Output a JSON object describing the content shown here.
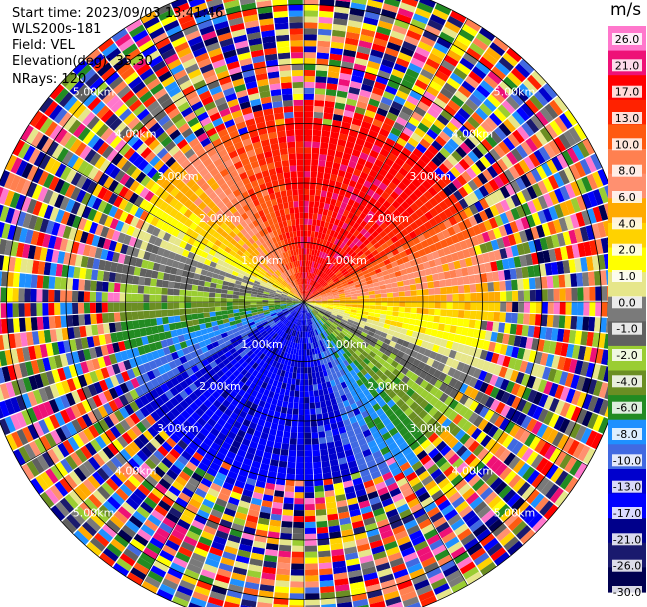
{
  "header": {
    "start_time": "Start time: 2023/09/03 13:41:46",
    "instrument": "WLS200s-181",
    "field": "Field: VEL",
    "elevation": "Elevation(deg): 35.30",
    "nrays": "NRays: 120"
  },
  "colorbar": {
    "unit": "m/s",
    "ticks": [
      "26.0",
      "21.0",
      "17.0",
      "13.0",
      "10.0",
      "8.0",
      "6.0",
      "4.0",
      "2.0",
      "1.0",
      "0.0",
      "-1.0",
      "-2.0",
      "-4.0",
      "-6.0",
      "-8.0",
      "-10.0",
      "-13.0",
      "-17.0",
      "-21.0",
      "-26.0",
      "-30.0"
    ],
    "colors": [
      "#ff77cc",
      "#ee1177",
      "#ff0000",
      "#ff2200",
      "#ff5a11",
      "#ff8050",
      "#ff9070",
      "#ffaa00",
      "#ffd200",
      "#ffff00",
      "#e6e68a",
      "#7a7a7a",
      "#606060",
      "#9acd32",
      "#6b8e23",
      "#228b22",
      "#1e90ff",
      "#4169e1",
      "#0000cd",
      "#0000ff",
      "#00008b",
      "#1a1a6e",
      "#000050"
    ]
  },
  "chart_data": {
    "type": "ppi_polar",
    "field": "VEL",
    "units": "m/s",
    "elevation_deg": 35.3,
    "nrays": 120,
    "range_rings_km": [
      1.0,
      2.0,
      3.0,
      4.0,
      5.0
    ],
    "ring_labels": [
      "1.00km",
      "2.00km",
      "3.00km",
      "4.00km",
      "5.00km"
    ],
    "max_range_km": 5.5,
    "pattern": {
      "toward_azimuth_deg": 20,
      "away_azimuth_deg": 200,
      "clean_range_km": 2.9,
      "noise_start_km": 3.4
    }
  }
}
